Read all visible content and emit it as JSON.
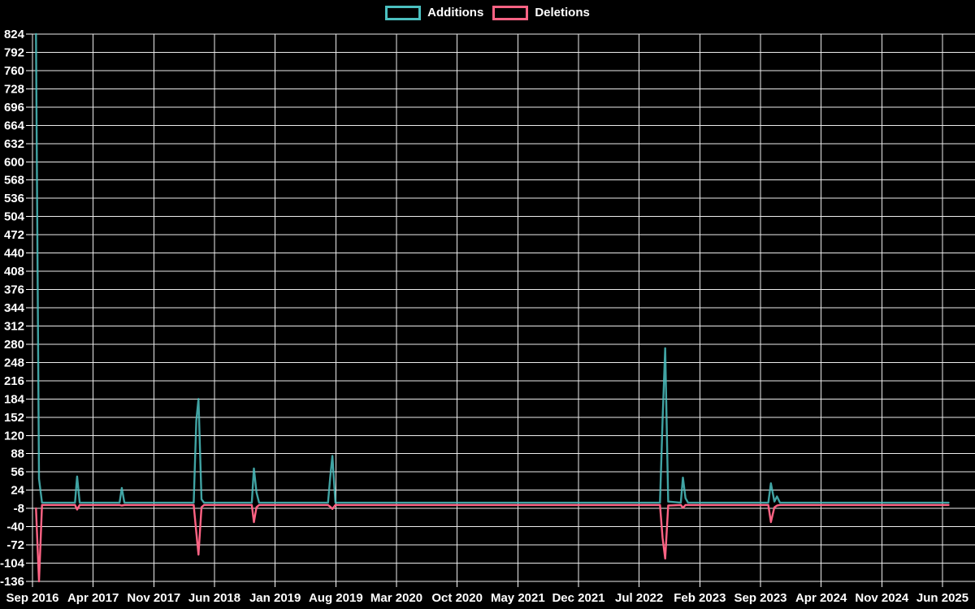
{
  "chart_data": {
    "type": "line",
    "title": "",
    "legend_position": "top-center",
    "background_color": "#000000",
    "gridline_color": "#ffffff",
    "text_color": "#ffffff",
    "grid": true,
    "x_tick_labels": [
      "Sep 2016",
      "Apr 2017",
      "Nov 2017",
      "Jun 2018",
      "Jan 2019",
      "Aug 2019",
      "Mar 2020",
      "Oct 2020",
      "May 2021",
      "Dec 2021",
      "Jul 2022",
      "Feb 2023",
      "Sep 2023",
      "Apr 2024",
      "Nov 2024",
      "Jun 2025"
    ],
    "x_months_span": 105,
    "y_axis": {
      "min": -136,
      "max": 824,
      "tick_step": 32
    },
    "series": [
      {
        "name": "Additions",
        "color": "#4bc0c0",
        "points": [
          [
            0.4,
            824
          ],
          [
            0.75,
            44
          ],
          [
            1.1,
            2
          ],
          [
            4.9,
            2
          ],
          [
            5.15,
            48
          ],
          [
            5.45,
            2
          ],
          [
            10.05,
            2
          ],
          [
            10.3,
            28
          ],
          [
            10.6,
            2
          ],
          [
            18.6,
            2
          ],
          [
            18.9,
            146
          ],
          [
            19.15,
            184
          ],
          [
            19.5,
            8
          ],
          [
            19.8,
            2
          ],
          [
            25.3,
            2
          ],
          [
            25.55,
            62
          ],
          [
            25.85,
            20
          ],
          [
            26.15,
            2
          ],
          [
            34.1,
            2
          ],
          [
            34.35,
            46
          ],
          [
            34.6,
            84
          ],
          [
            34.95,
            2
          ],
          [
            72.4,
            2
          ],
          [
            72.7,
            148
          ],
          [
            73.0,
            273
          ],
          [
            73.35,
            4
          ],
          [
            74.8,
            2
          ],
          [
            75.05,
            46
          ],
          [
            75.35,
            10
          ],
          [
            75.65,
            2
          ],
          [
            84.9,
            2
          ],
          [
            85.2,
            36
          ],
          [
            85.6,
            4
          ],
          [
            85.9,
            13
          ],
          [
            86.25,
            2
          ],
          [
            105.7,
            2
          ]
        ]
      },
      {
        "name": "Deletions",
        "color": "#ff6384",
        "points": [
          [
            0.4,
            -8
          ],
          [
            0.75,
            -136
          ],
          [
            1.1,
            -2
          ],
          [
            4.9,
            -2
          ],
          [
            5.15,
            -10
          ],
          [
            5.45,
            -2
          ],
          [
            10.05,
            -2
          ],
          [
            10.3,
            -3
          ],
          [
            10.6,
            -2
          ],
          [
            18.6,
            -2
          ],
          [
            18.9,
            -50
          ],
          [
            19.15,
            -89
          ],
          [
            19.5,
            -6
          ],
          [
            19.8,
            -2
          ],
          [
            25.3,
            -2
          ],
          [
            25.55,
            -32
          ],
          [
            25.85,
            -6
          ],
          [
            26.15,
            -2
          ],
          [
            34.1,
            -2
          ],
          [
            34.35,
            -5
          ],
          [
            34.6,
            -9
          ],
          [
            34.95,
            -2
          ],
          [
            72.4,
            -2
          ],
          [
            72.7,
            -60
          ],
          [
            73.0,
            -96
          ],
          [
            73.35,
            -3
          ],
          [
            74.8,
            -2
          ],
          [
            75.05,
            -7
          ],
          [
            75.35,
            -2
          ],
          [
            75.65,
            -2
          ],
          [
            84.9,
            -2
          ],
          [
            85.2,
            -32
          ],
          [
            85.6,
            -6
          ],
          [
            85.9,
            -3
          ],
          [
            86.25,
            -2
          ],
          [
            105.7,
            -2
          ]
        ]
      }
    ]
  }
}
